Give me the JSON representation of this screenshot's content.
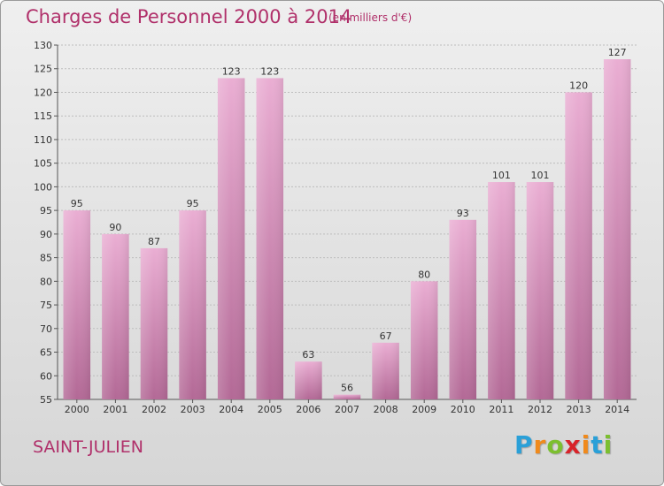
{
  "header": {
    "title": "Charges de Personnel 2000 à 2014",
    "subtitle": "(en milliers d'€)"
  },
  "footer": {
    "commune": "SAINT-JULIEN",
    "logo_letters": [
      "P",
      "r",
      "o",
      "x",
      "i",
      "t",
      "i"
    ],
    "logo_colors": [
      "#2aa0d8",
      "#f08a1c",
      "#7cbf2f",
      "#d8232a",
      "#f08a1c",
      "#2aa0d8",
      "#7cbf2f"
    ]
  },
  "colors": {
    "bar_light": "#e8a9cf",
    "bar_dark": "#b76b99",
    "grid": "#bdbdbd",
    "title": "#b0306a"
  },
  "chart_data": {
    "type": "bar",
    "title": "Charges de Personnel 2000 à 2014",
    "subtitle": "(en milliers d'€)",
    "categories": [
      "2000",
      "2001",
      "2002",
      "2003",
      "2004",
      "2005",
      "2006",
      "2007",
      "2008",
      "2009",
      "2010",
      "2011",
      "2012",
      "2013",
      "2014"
    ],
    "values": [
      95,
      90,
      87,
      95,
      123,
      123,
      63,
      56,
      67,
      80,
      93,
      101,
      101,
      120,
      127
    ],
    "ylim": [
      55,
      130
    ],
    "yticks": [
      55,
      60,
      65,
      70,
      75,
      80,
      85,
      90,
      95,
      100,
      105,
      110,
      115,
      120,
      125,
      130
    ],
    "grid": true,
    "xlabel": "",
    "ylabel": ""
  }
}
